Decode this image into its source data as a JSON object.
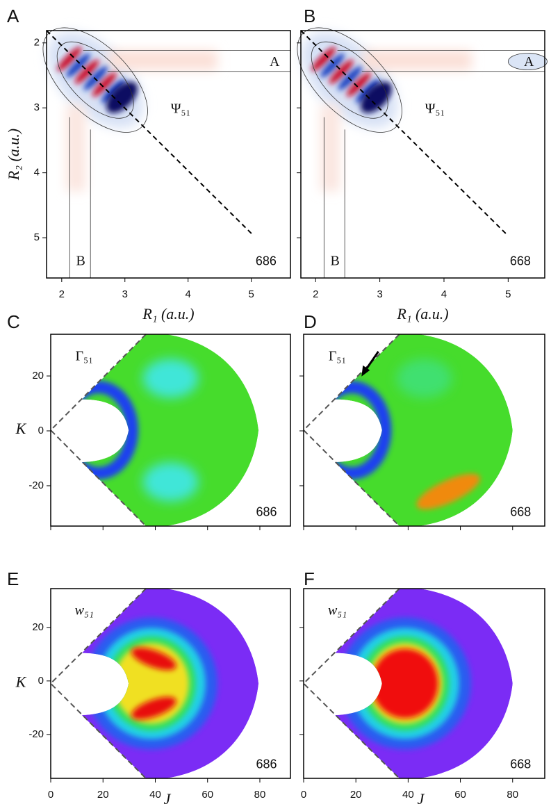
{
  "chart_data": [
    {
      "type": "contour",
      "panel": "A",
      "x_label": "R₁  (a.u.)",
      "y_label": "R₂  (a.u.)",
      "xlim": [
        1.76,
        5.62
      ],
      "ylim": [
        5.62,
        1.81
      ],
      "xticks": [
        2,
        3,
        4,
        5
      ],
      "yticks": [
        2,
        3,
        4,
        5
      ],
      "annotations": [
        "Ψ₅₁",
        "A",
        "B",
        "686"
      ]
    },
    {
      "type": "contour",
      "panel": "B",
      "x_label": "R₁ (a.u.)",
      "xlim": [
        1.77,
        5.57
      ],
      "ylim": [
        5.62,
        1.81
      ],
      "xticks": [
        2,
        3,
        4,
        5
      ],
      "annotations": [
        "Ψ₅₁",
        "A",
        "B",
        "668"
      ]
    },
    {
      "type": "gamma",
      "panel": "C",
      "y_label": "K",
      "xlim": [
        0,
        91.7
      ],
      "ylim": [
        -34.7,
        35.2
      ],
      "yticks": [
        -20,
        0,
        20
      ],
      "annotations": [
        "Γ₅₁",
        "686"
      ]
    },
    {
      "type": "gamma",
      "panel": "D",
      "xlim": [
        0,
        92.3
      ],
      "ylim": [
        -34.7,
        35.2
      ],
      "annotations": [
        "Γ₅₁",
        "668"
      ]
    },
    {
      "type": "weight",
      "panel": "E",
      "x_label": "J",
      "y_label": "K",
      "xlim": [
        0,
        91.7
      ],
      "ylim": [
        -36.4,
        34.5
      ],
      "xticks": [
        0,
        20,
        40,
        60,
        80
      ],
      "yticks": [
        -20,
        0,
        20
      ],
      "annotations": [
        "w₅₁",
        "686"
      ]
    },
    {
      "type": "weight",
      "panel": "F",
      "x_label": "J",
      "xlim": [
        0,
        92.3
      ],
      "ylim": [
        -36.4,
        34.5
      ],
      "xticks": [
        0,
        20,
        40,
        60,
        80
      ],
      "annotations": [
        "w₅₁",
        "668"
      ]
    }
  ]
}
